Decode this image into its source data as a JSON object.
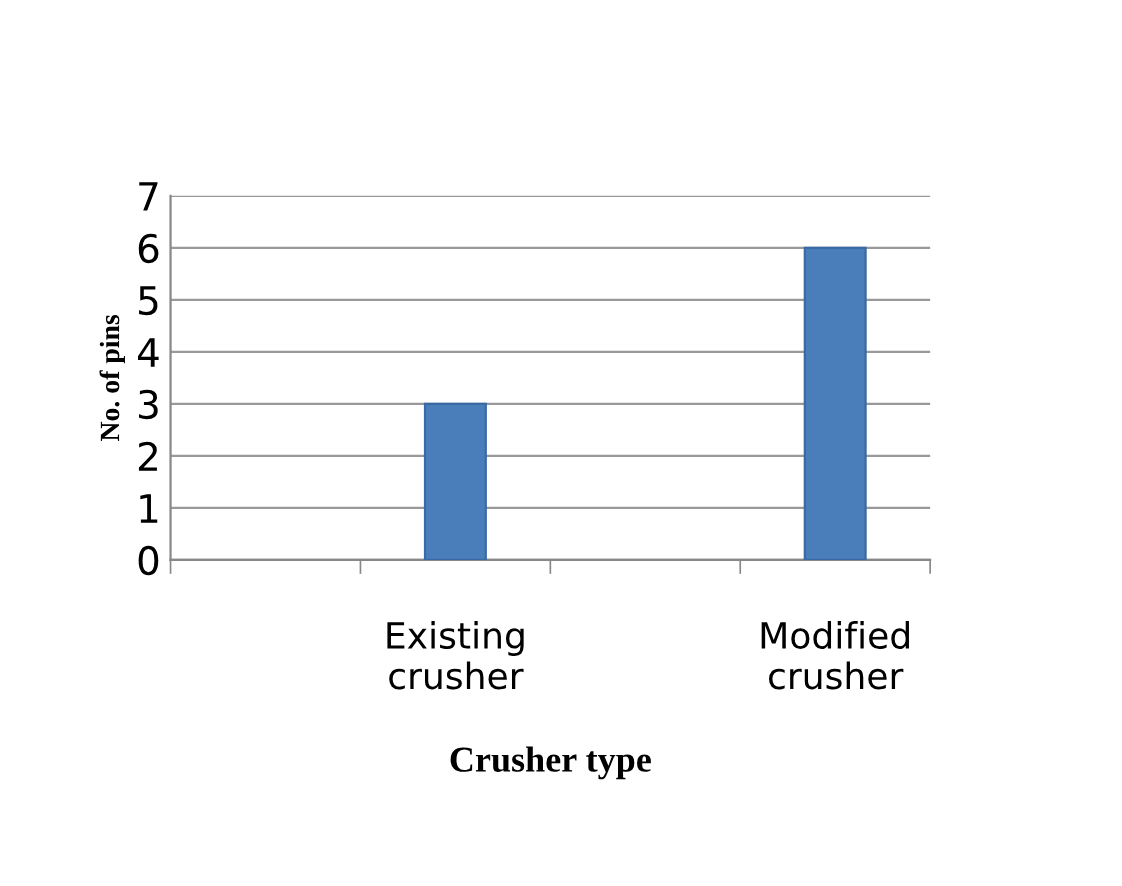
{
  "chart_data": {
    "type": "bar",
    "categories": [
      null,
      "Existing\ncrusher",
      null,
      "Modified\ncrusher"
    ],
    "values": [
      null,
      3,
      null,
      6
    ],
    "color": "#4a7ebb",
    "xlabel": "Crusher type",
    "ylabel": "No. of pins",
    "ylim": [
      0,
      7
    ],
    "yticks": [
      0,
      1,
      2,
      3,
      4,
      5,
      6,
      7
    ],
    "grid": "y",
    "legend": false
  }
}
